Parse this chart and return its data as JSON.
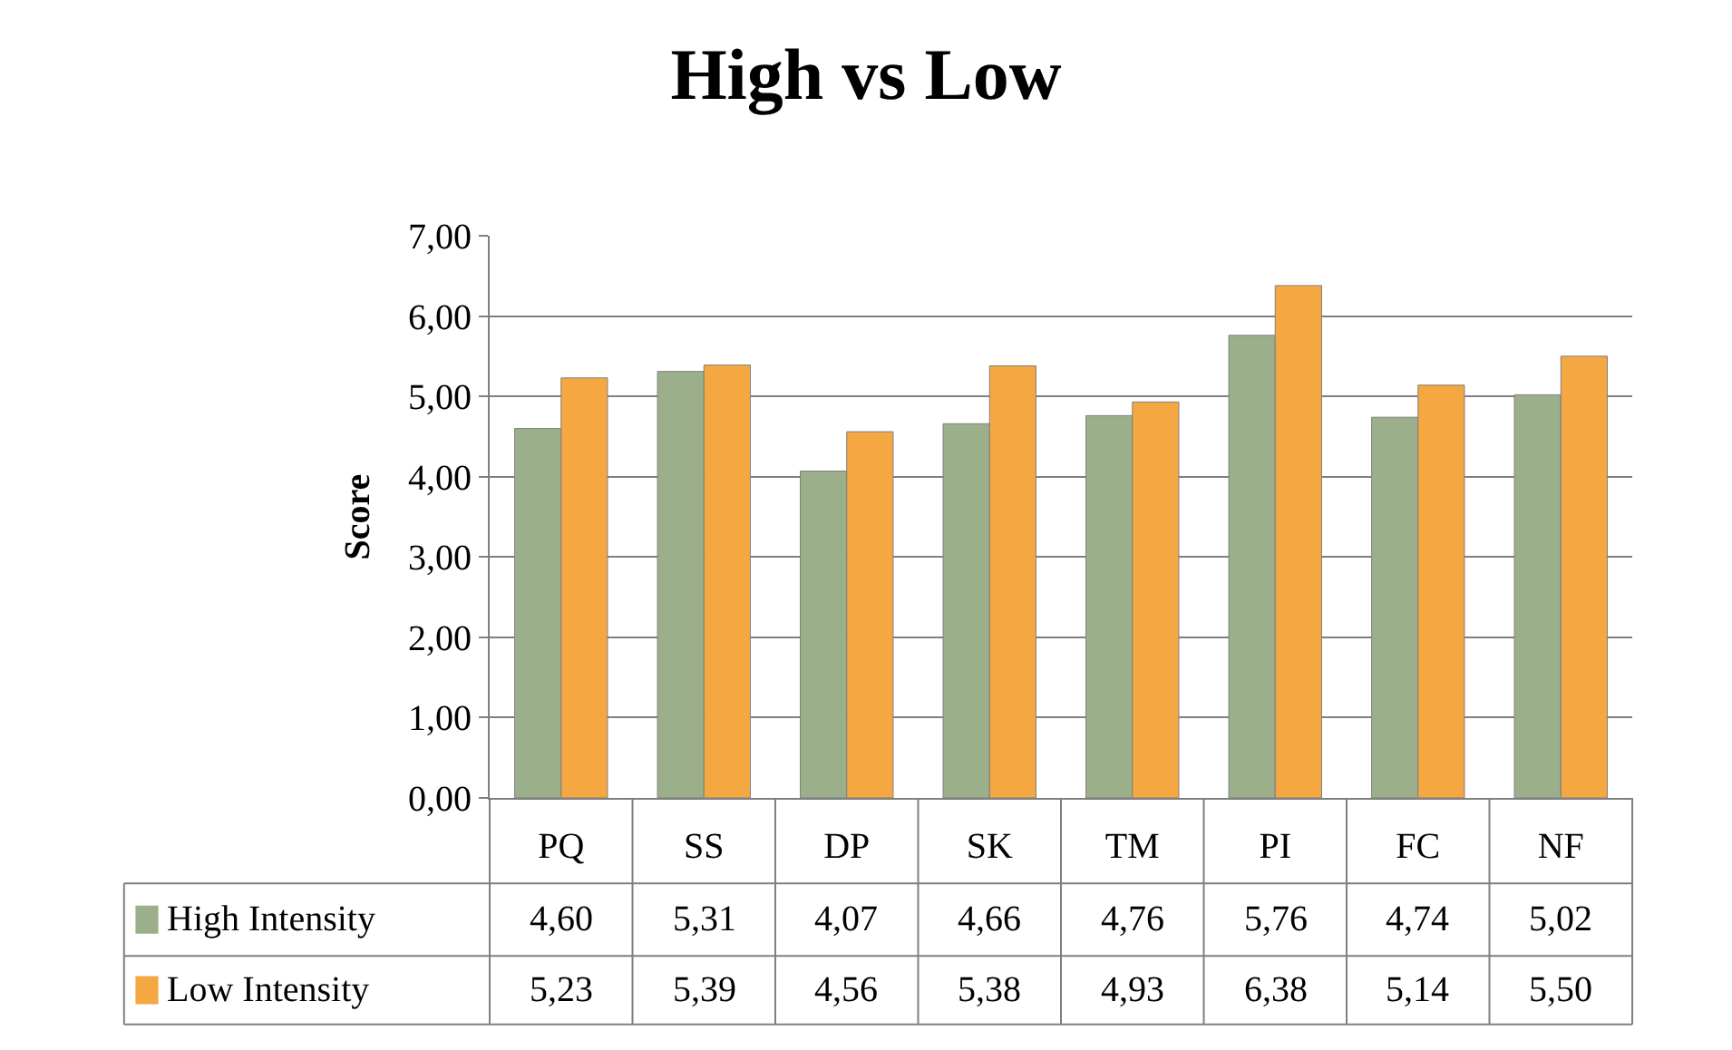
{
  "chart_data": {
    "type": "bar",
    "title": "High vs Low",
    "ylabel": "Score",
    "categories": [
      "PQ",
      "SS",
      "DP",
      "SK",
      "TM",
      "PI",
      "FC",
      "NF"
    ],
    "series": [
      {
        "name": "High Intensity",
        "color": "#9bb08a",
        "values": [
          4.6,
          5.31,
          4.07,
          4.66,
          4.76,
          5.76,
          4.74,
          5.02
        ],
        "value_labels": [
          "4,60",
          "5,31",
          "4,07",
          "4,66",
          "4,76",
          "5,76",
          "4,74",
          "5,02"
        ]
      },
      {
        "name": "Low Intensity",
        "color": "#f5a742",
        "values": [
          5.23,
          5.39,
          4.56,
          5.38,
          4.93,
          6.38,
          5.14,
          5.5
        ],
        "value_labels": [
          "5,23",
          "5,39",
          "4,56",
          "5,38",
          "4,93",
          "6,38",
          "5,14",
          "5,50"
        ]
      }
    ],
    "ylim": [
      0,
      7
    ],
    "yticks": [
      {
        "value": 0,
        "label": "0,00"
      },
      {
        "value": 1,
        "label": "1,00"
      },
      {
        "value": 2,
        "label": "2,00"
      },
      {
        "value": 3,
        "label": "3,00"
      },
      {
        "value": 4,
        "label": "4,00"
      },
      {
        "value": 5,
        "label": "5,00"
      },
      {
        "value": 6,
        "label": "6,00"
      },
      {
        "value": 7,
        "label": "7,00"
      }
    ],
    "grid": "y",
    "legend": "bottom left"
  }
}
